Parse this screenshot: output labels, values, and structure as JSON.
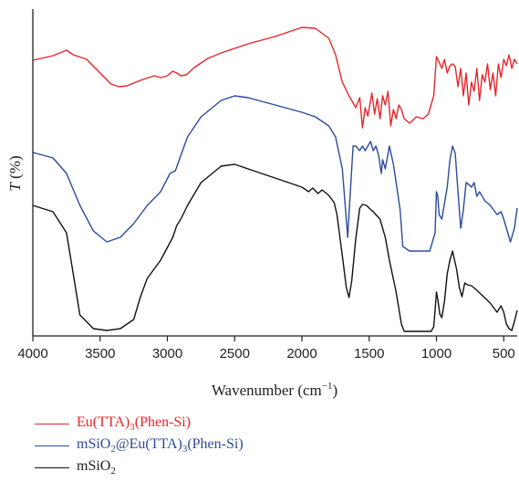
{
  "chart_data": {
    "type": "line",
    "title": "",
    "xlabel": "Wavenumber (cm",
    "xlabel_sup": "−1",
    "xlabel_close": ")",
    "ylabel_italic": "T",
    "ylabel_rest": " (%)",
    "xlim": [
      4000,
      400
    ],
    "x_reversed": true,
    "y_ticks_shown": false,
    "x_ticks": [
      4000,
      3500,
      3000,
      2500,
      2000,
      1500,
      1000,
      500
    ],
    "x_tick_labels": [
      "4000",
      "3500",
      "3000",
      "2500",
      "2000",
      "1500",
      "1000",
      "500"
    ],
    "legend_position": "bottom-left",
    "series": [
      {
        "name": "Eu(TTA)3(Phen-Si)",
        "legend_parts": [
          [
            "Eu(TTA)",
            false
          ],
          [
            "3",
            true
          ],
          [
            "(Phen-Si)",
            false
          ]
        ],
        "color": "#e8262b",
        "points": [
          [
            4000,
            56
          ],
          [
            3850,
            51
          ],
          [
            3750,
            45
          ],
          [
            3700,
            50
          ],
          [
            3600,
            55
          ],
          [
            3500,
            70
          ],
          [
            3420,
            82
          ],
          [
            3360,
            85
          ],
          [
            3300,
            84
          ],
          [
            3200,
            78
          ],
          [
            3100,
            73
          ],
          [
            3050,
            75
          ],
          [
            3000,
            73
          ],
          [
            2960,
            68
          ],
          [
            2930,
            70
          ],
          [
            2900,
            73
          ],
          [
            2860,
            72
          ],
          [
            2800,
            64
          ],
          [
            2700,
            54
          ],
          [
            2600,
            48
          ],
          [
            2400,
            38
          ],
          [
            2200,
            30
          ],
          [
            2000,
            20
          ],
          [
            1900,
            21
          ],
          [
            1800,
            32
          ],
          [
            1750,
            50
          ],
          [
            1700,
            80
          ],
          [
            1650,
            95
          ],
          [
            1630,
            100
          ],
          [
            1600,
            108
          ],
          [
            1570,
            97
          ],
          [
            1550,
            130
          ],
          [
            1530,
            108
          ],
          [
            1510,
            117
          ],
          [
            1480,
            92
          ],
          [
            1460,
            115
          ],
          [
            1440,
            98
          ],
          [
            1420,
            120
          ],
          [
            1400,
            95
          ],
          [
            1380,
            105
          ],
          [
            1360,
            90
          ],
          [
            1340,
            128
          ],
          [
            1320,
            110
          ],
          [
            1300,
            120
          ],
          [
            1280,
            105
          ],
          [
            1260,
            110
          ],
          [
            1240,
            120
          ],
          [
            1200,
            125
          ],
          [
            1150,
            118
          ],
          [
            1100,
            120
          ],
          [
            1060,
            115
          ],
          [
            1020,
            95
          ],
          [
            1000,
            52
          ],
          [
            980,
            58
          ],
          [
            960,
            65
          ],
          [
            940,
            55
          ],
          [
            920,
            70
          ],
          [
            900,
            62
          ],
          [
            880,
            60
          ],
          [
            860,
            63
          ],
          [
            840,
            85
          ],
          [
            820,
            65
          ],
          [
            800,
            95
          ],
          [
            780,
            70
          ],
          [
            760,
            105
          ],
          [
            740,
            80
          ],
          [
            720,
            90
          ],
          [
            700,
            65
          ],
          [
            680,
            100
          ],
          [
            660,
            72
          ],
          [
            640,
            80
          ],
          [
            620,
            60
          ],
          [
            600,
            88
          ],
          [
            580,
            70
          ],
          [
            560,
            95
          ],
          [
            540,
            60
          ],
          [
            520,
            75
          ],
          [
            500,
            55
          ],
          [
            480,
            62
          ],
          [
            460,
            50
          ],
          [
            440,
            65
          ],
          [
            420,
            55
          ],
          [
            400,
            60
          ]
        ]
      },
      {
        "name": "mSiO2@Eu(TTA)3(Phen-Si)",
        "legend_parts": [
          [
            "mSiO",
            false
          ],
          [
            "2",
            true
          ],
          [
            "@Eu(TTA)",
            false
          ],
          [
            "3",
            true
          ],
          [
            "(Phen-Si)",
            false
          ]
        ],
        "color": "#2b4b9b",
        "points": [
          [
            4000,
            157
          ],
          [
            3850,
            163
          ],
          [
            3750,
            180
          ],
          [
            3650,
            215
          ],
          [
            3550,
            243
          ],
          [
            3450,
            255
          ],
          [
            3350,
            250
          ],
          [
            3250,
            235
          ],
          [
            3150,
            215
          ],
          [
            3050,
            200
          ],
          [
            2980,
            180
          ],
          [
            2940,
            177
          ],
          [
            2900,
            160
          ],
          [
            2850,
            140
          ],
          [
            2750,
            118
          ],
          [
            2600,
            100
          ],
          [
            2500,
            95
          ],
          [
            2400,
            97
          ],
          [
            2200,
            105
          ],
          [
            2000,
            113
          ],
          [
            1900,
            118
          ],
          [
            1800,
            128
          ],
          [
            1750,
            140
          ],
          [
            1700,
            175
          ],
          [
            1660,
            250
          ],
          [
            1640,
            200
          ],
          [
            1620,
            150
          ],
          [
            1600,
            150
          ],
          [
            1570,
            155
          ],
          [
            1550,
            150
          ],
          [
            1530,
            155
          ],
          [
            1510,
            150
          ],
          [
            1490,
            145
          ],
          [
            1470,
            155
          ],
          [
            1450,
            150
          ],
          [
            1430,
            160
          ],
          [
            1410,
            180
          ],
          [
            1400,
            165
          ],
          [
            1380,
            175
          ],
          [
            1350,
            150
          ],
          [
            1320,
            170
          ],
          [
            1300,
            190
          ],
          [
            1270,
            220
          ],
          [
            1250,
            260
          ],
          [
            1200,
            265
          ],
          [
            1100,
            265
          ],
          [
            1050,
            265
          ],
          [
            1010,
            245
          ],
          [
            1000,
            200
          ],
          [
            990,
            205
          ],
          [
            980,
            225
          ],
          [
            960,
            230
          ],
          [
            920,
            195
          ],
          [
            900,
            165
          ],
          [
            880,
            150
          ],
          [
            860,
            158
          ],
          [
            840,
            200
          ],
          [
            820,
            240
          ],
          [
            800,
            220
          ],
          [
            780,
            190
          ],
          [
            760,
            192
          ],
          [
            740,
            195
          ],
          [
            720,
            190
          ],
          [
            700,
            205
          ],
          [
            680,
            200
          ],
          [
            640,
            210
          ],
          [
            600,
            215
          ],
          [
            550,
            225
          ],
          [
            520,
            222
          ],
          [
            500,
            230
          ],
          [
            480,
            240
          ],
          [
            450,
            255
          ],
          [
            420,
            240
          ],
          [
            400,
            218
          ]
        ]
      },
      {
        "name": "mSiO2",
        "legend_parts": [
          [
            "mSiO",
            false
          ],
          [
            "2",
            true
          ]
        ],
        "color": "#111111",
        "points": [
          [
            4000,
            215
          ],
          [
            3850,
            222
          ],
          [
            3750,
            245
          ],
          [
            3700,
            290
          ],
          [
            3650,
            335
          ],
          [
            3550,
            350
          ],
          [
            3450,
            352
          ],
          [
            3350,
            350
          ],
          [
            3250,
            340
          ],
          [
            3200,
            315
          ],
          [
            3150,
            295
          ],
          [
            3050,
            275
          ],
          [
            2960,
            250
          ],
          [
            2930,
            237
          ],
          [
            2900,
            230
          ],
          [
            2850,
            215
          ],
          [
            2750,
            190
          ],
          [
            2600,
            172
          ],
          [
            2500,
            170
          ],
          [
            2400,
            175
          ],
          [
            2200,
            185
          ],
          [
            2000,
            195
          ],
          [
            1950,
            200
          ],
          [
            1920,
            196
          ],
          [
            1880,
            202
          ],
          [
            1850,
            198
          ],
          [
            1800,
            204
          ],
          [
            1760,
            212
          ],
          [
            1740,
            225
          ],
          [
            1700,
            270
          ],
          [
            1670,
            305
          ],
          [
            1650,
            316
          ],
          [
            1630,
            298
          ],
          [
            1600,
            252
          ],
          [
            1570,
            218
          ],
          [
            1550,
            214
          ],
          [
            1520,
            215
          ],
          [
            1500,
            218
          ],
          [
            1470,
            222
          ],
          [
            1420,
            230
          ],
          [
            1380,
            250
          ],
          [
            1350,
            275
          ],
          [
            1300,
            310
          ],
          [
            1260,
            345
          ],
          [
            1240,
            353
          ],
          [
            1150,
            353
          ],
          [
            1100,
            353
          ],
          [
            1040,
            353
          ],
          [
            1020,
            348
          ],
          [
            1010,
            330
          ],
          [
            1000,
            310
          ],
          [
            990,
            318
          ],
          [
            975,
            334
          ],
          [
            960,
            338
          ],
          [
            940,
            320
          ],
          [
            920,
            290
          ],
          [
            900,
            275
          ],
          [
            880,
            265
          ],
          [
            870,
            272
          ],
          [
            850,
            285
          ],
          [
            830,
            305
          ],
          [
            810,
            315
          ],
          [
            790,
            300
          ],
          [
            770,
            302
          ],
          [
            740,
            303
          ],
          [
            700,
            308
          ],
          [
            650,
            315
          ],
          [
            600,
            322
          ],
          [
            550,
            332
          ],
          [
            520,
            325
          ],
          [
            500,
            332
          ],
          [
            480,
            345
          ],
          [
            460,
            350
          ],
          [
            440,
            352
          ],
          [
            420,
            342
          ],
          [
            400,
            330
          ]
        ]
      }
    ]
  }
}
